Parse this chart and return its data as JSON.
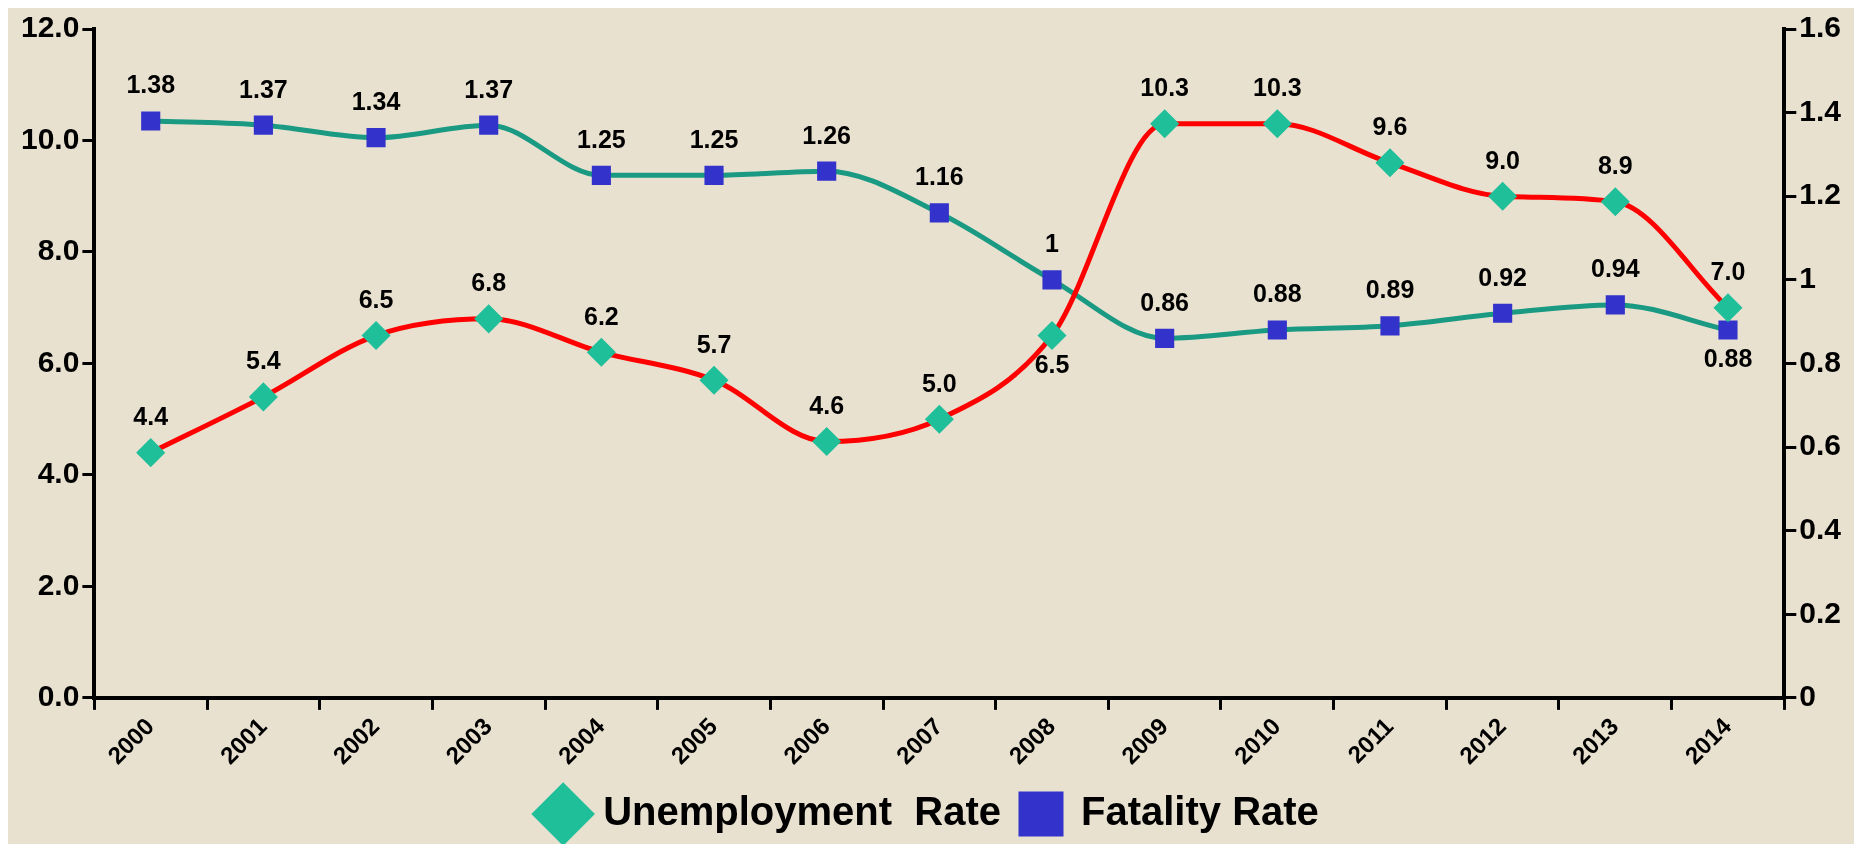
{
  "chart_data": {
    "type": "line",
    "categories": [
      "2000",
      "2001",
      "2002",
      "2003",
      "2004",
      "2005",
      "2006",
      "2007",
      "2008",
      "2009",
      "2010",
      "2011",
      "2012",
      "2013",
      "2014"
    ],
    "series": [
      {
        "name": "Unemployment  Rate",
        "color": "#ff0000",
        "colors": [
          "#1fbf9a",
          "#1fbf9a",
          "#1fbf9a",
          "#1fbf9a",
          "#1fbf9a",
          "#1fbf9a",
          "#1fbf9a",
          "#1fbf9a",
          "#1fbf9a",
          "#1fbf9a",
          "#1fbf9a",
          "#1fbf9a",
          "#1fbf9a",
          "#1fbf9a",
          "#1fbf9a"
        ],
        "marker": "diamond",
        "values": [
          4.4,
          5.4,
          6.5,
          6.8,
          6.2,
          5.7,
          4.6,
          5.0,
          6.5,
          10.3,
          10.3,
          9.6,
          9.0,
          8.9,
          7.0
        ],
        "value_labels": [
          "4.4",
          "5.4",
          "6.5",
          "6.8",
          "6.2",
          "5.7",
          "4.6",
          "5.0",
          "6.5",
          "10.3",
          "10.3",
          "9.6",
          "9.0",
          "8.9",
          "7.0"
        ]
      },
      {
        "name": "Fatality Rate",
        "color": "#1a9a82",
        "colors": [
          "#3333cc",
          "#3333cc",
          "#3333cc",
          "#3333cc",
          "#3333cc",
          "#3333cc",
          "#3333cc",
          "#3333cc",
          "#3333cc",
          "#3333cc",
          "#3333cc",
          "#3333cc",
          "#3333cc",
          "#3333cc",
          "#3333cc"
        ],
        "marker": "square",
        "axis": "y2",
        "values": [
          1.38,
          1.37,
          1.34,
          1.37,
          1.25,
          1.25,
          1.26,
          1.16,
          1,
          0.86,
          0.88,
          0.89,
          0.92,
          0.94,
          0.88
        ],
        "value_labels": [
          "1.38",
          "1.37",
          "1.34",
          "1.37",
          "1.25",
          "1.25",
          "1.26",
          "1.16",
          "1",
          "0.86",
          "0.88",
          "0.89",
          "0.92",
          "0.94",
          "0.88"
        ]
      }
    ],
    "ylim": [
      0,
      12
    ],
    "yticks": [
      {
        "value": 0,
        "label": "0.0"
      },
      {
        "value": 2,
        "label": "2.0"
      },
      {
        "value": 4,
        "label": "4.0"
      },
      {
        "value": 6,
        "label": "6.0"
      },
      {
        "value": 8,
        "label": "8.0"
      },
      {
        "value": 10,
        "label": "10.0"
      },
      {
        "value": 12,
        "label": "12.0"
      }
    ],
    "y2lim": [
      0,
      1.6
    ],
    "y2ticks": [
      0,
      0.2,
      0.4,
      0.6,
      0.8,
      1,
      1.2,
      1.4,
      1.6
    ],
    "grid": false,
    "legend": "bottom"
  }
}
